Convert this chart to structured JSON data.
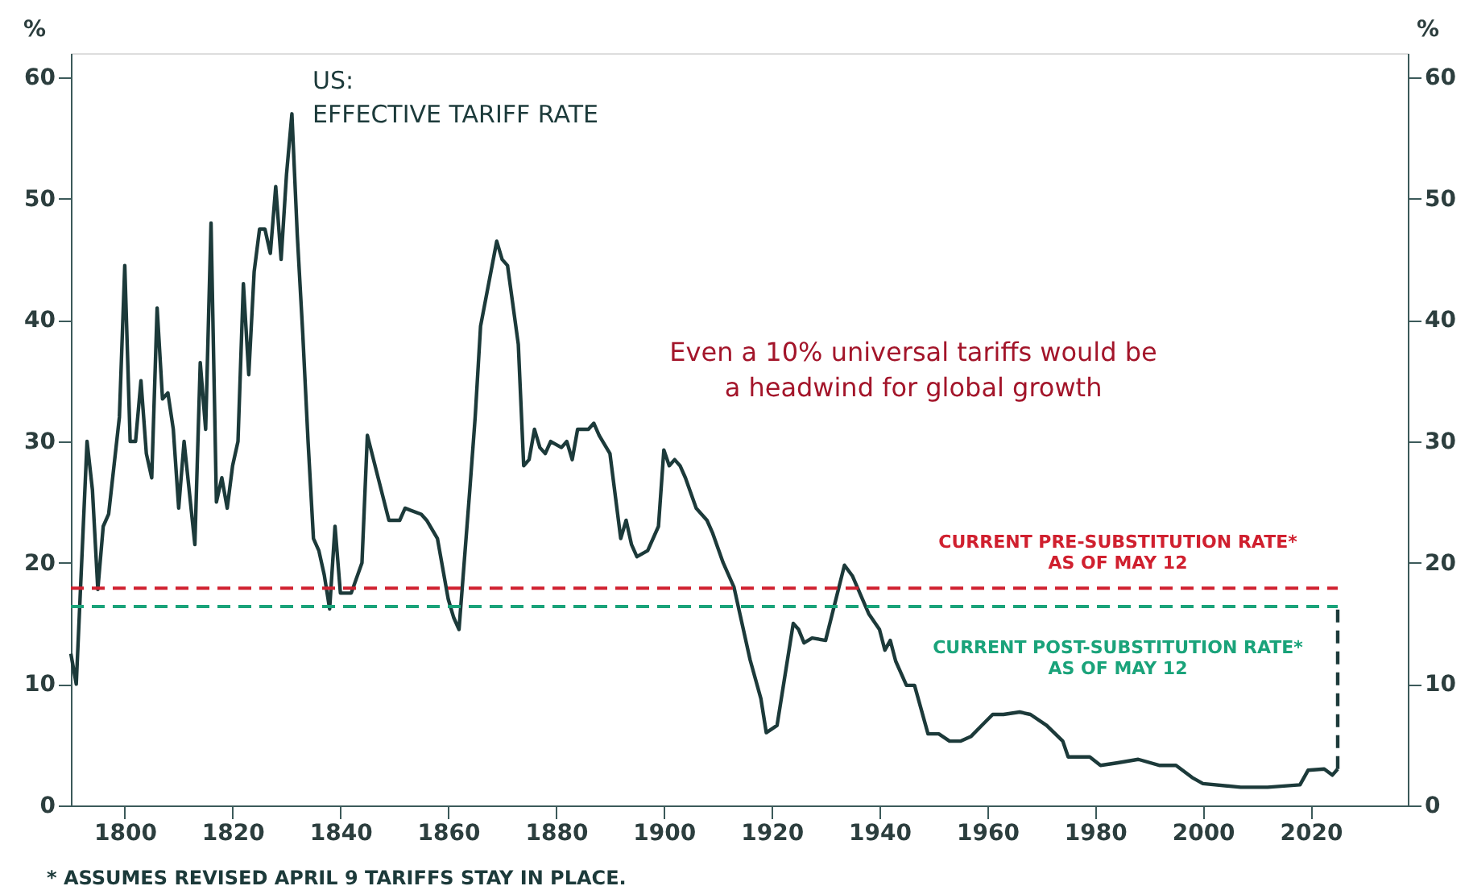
{
  "chart_data": {
    "type": "line",
    "ylabel": "%",
    "y2label": "%",
    "annotations": [
      "US:\nEFFECTIVE TARIFF RATE",
      "Even a 10% universal tariffs would be\na headwind for global growth",
      "* ASSUMES REVISED APRIL 9 TARIFFS STAY IN PLACE."
    ],
    "xlim": [
      1790,
      2038
    ],
    "xticks": [
      1800,
      1820,
      1840,
      1860,
      1880,
      1900,
      1920,
      1940,
      1960,
      1980,
      2000,
      2020
    ],
    "ylim": [
      0,
      62
    ],
    "yticks": [
      0,
      10,
      20,
      30,
      40,
      50,
      60
    ],
    "y2lim": [
      0,
      62
    ],
    "y2ticks": [
      0,
      10,
      20,
      30,
      40,
      50,
      60
    ],
    "grid": false,
    "line_style": "solid",
    "series": [
      {
        "color": "#1c3a3a",
        "x": [
          1790,
          1791,
          1793,
          1794,
          1795,
          1796,
          1797,
          1799,
          1800,
          1801,
          1802,
          1803,
          1804,
          1805,
          1806,
          1807,
          1808,
          1809,
          1810,
          1811,
          1813,
          1814,
          1815,
          1816,
          1817,
          1818,
          1819,
          1820,
          1821,
          1822,
          1823,
          1824,
          1825,
          1826,
          1827,
          1828,
          1829,
          1830,
          1831,
          1832,
          1833,
          1834,
          1835,
          1836,
          1837,
          1838,
          1839,
          1840,
          1842,
          1844,
          1845,
          1847,
          1849,
          1851,
          1852,
          1855,
          1856,
          1858,
          1860,
          1861,
          1862,
          1864,
          1865,
          1866,
          1869,
          1870,
          1871,
          1873,
          1874,
          1875,
          1876,
          1877,
          1878,
          1879,
          1881,
          1882,
          1883,
          1884,
          1886,
          1887,
          1888,
          1890,
          1892,
          1893,
          1894,
          1895,
          1897,
          1899,
          1900,
          1901,
          1902,
          1903,
          1904,
          1906,
          1907,
          1908,
          1909,
          1911,
          1913,
          1916,
          1918,
          1919,
          1921,
          1924,
          1925,
          1926,
          1927.5,
          1930,
          1933.5,
          1935,
          1938,
          1940,
          1941,
          1942,
          1943,
          1945,
          1946.5,
          1949,
          1951,
          1953,
          1955,
          1957,
          1959,
          1961,
          1963,
          1966,
          1968,
          1971,
          1974,
          1975,
          1979,
          1981,
          1984,
          1988,
          1992,
          1995,
          1998,
          2000,
          2007,
          2012,
          2018,
          2019.5,
          2022.5,
          2024,
          2025
        ],
        "values": [
          12.5,
          10,
          30,
          26,
          17.8,
          23,
          24,
          32,
          44.5,
          30,
          30,
          35,
          29,
          27,
          41,
          33.5,
          34,
          31,
          24.5,
          30,
          21.5,
          36.5,
          31,
          48,
          25,
          27,
          24.5,
          28,
          30,
          43,
          35.5,
          44,
          47.5,
          47.5,
          45.5,
          51,
          45,
          52,
          57,
          47,
          39,
          30,
          22,
          21,
          19,
          16.2,
          23,
          17.5,
          17.5,
          20,
          30.5,
          27,
          23.5,
          23.5,
          24.5,
          24,
          23.5,
          22,
          17,
          15.5,
          14.5,
          26,
          32,
          39.5,
          46.5,
          45,
          44.5,
          38,
          28,
          28.5,
          31,
          29.5,
          29,
          30,
          29.5,
          30,
          28.5,
          31,
          31,
          31.5,
          30.5,
          29,
          22,
          23.5,
          21.5,
          20.5,
          21,
          23,
          29.3,
          28,
          28.5,
          28,
          27,
          24.5,
          24,
          23.5,
          22.5,
          20,
          18,
          12,
          8.8,
          6,
          6.6,
          15,
          14.5,
          13.4,
          13.8,
          13.6,
          19.8,
          18.9,
          15.8,
          14.5,
          12.8,
          13.6,
          11.9,
          9.9,
          9.9,
          5.9,
          5.9,
          5.3,
          5.3,
          5.7,
          6.6,
          7.5,
          7.5,
          7.7,
          7.5,
          6.6,
          5.3,
          4,
          4,
          3.3,
          3.5,
          3.8,
          3.3,
          3.3,
          2.3,
          1.8,
          1.5,
          1.5,
          1.7,
          2.9,
          3,
          2.5,
          3
        ]
      },
      {
        "color": "#1c3a3a",
        "line_style": "dashed",
        "x": [
          2025,
          2025
        ],
        "values": [
          3,
          16.4
        ]
      }
    ],
    "ref_lines": [
      {
        "axis": "y",
        "value": 17.9,
        "label": "CURRENT PRE-SUBSTITUTION RATE*\nAS OF MAY 12",
        "color": "#d0202f",
        "line_style": "dashed"
      },
      {
        "axis": "y",
        "value": 16.4,
        "label": "CURRENT POST-SUBSTITUTION RATE*\nAS OF MAY 12",
        "color": "#1aa37a",
        "line_style": "dashed"
      }
    ]
  }
}
